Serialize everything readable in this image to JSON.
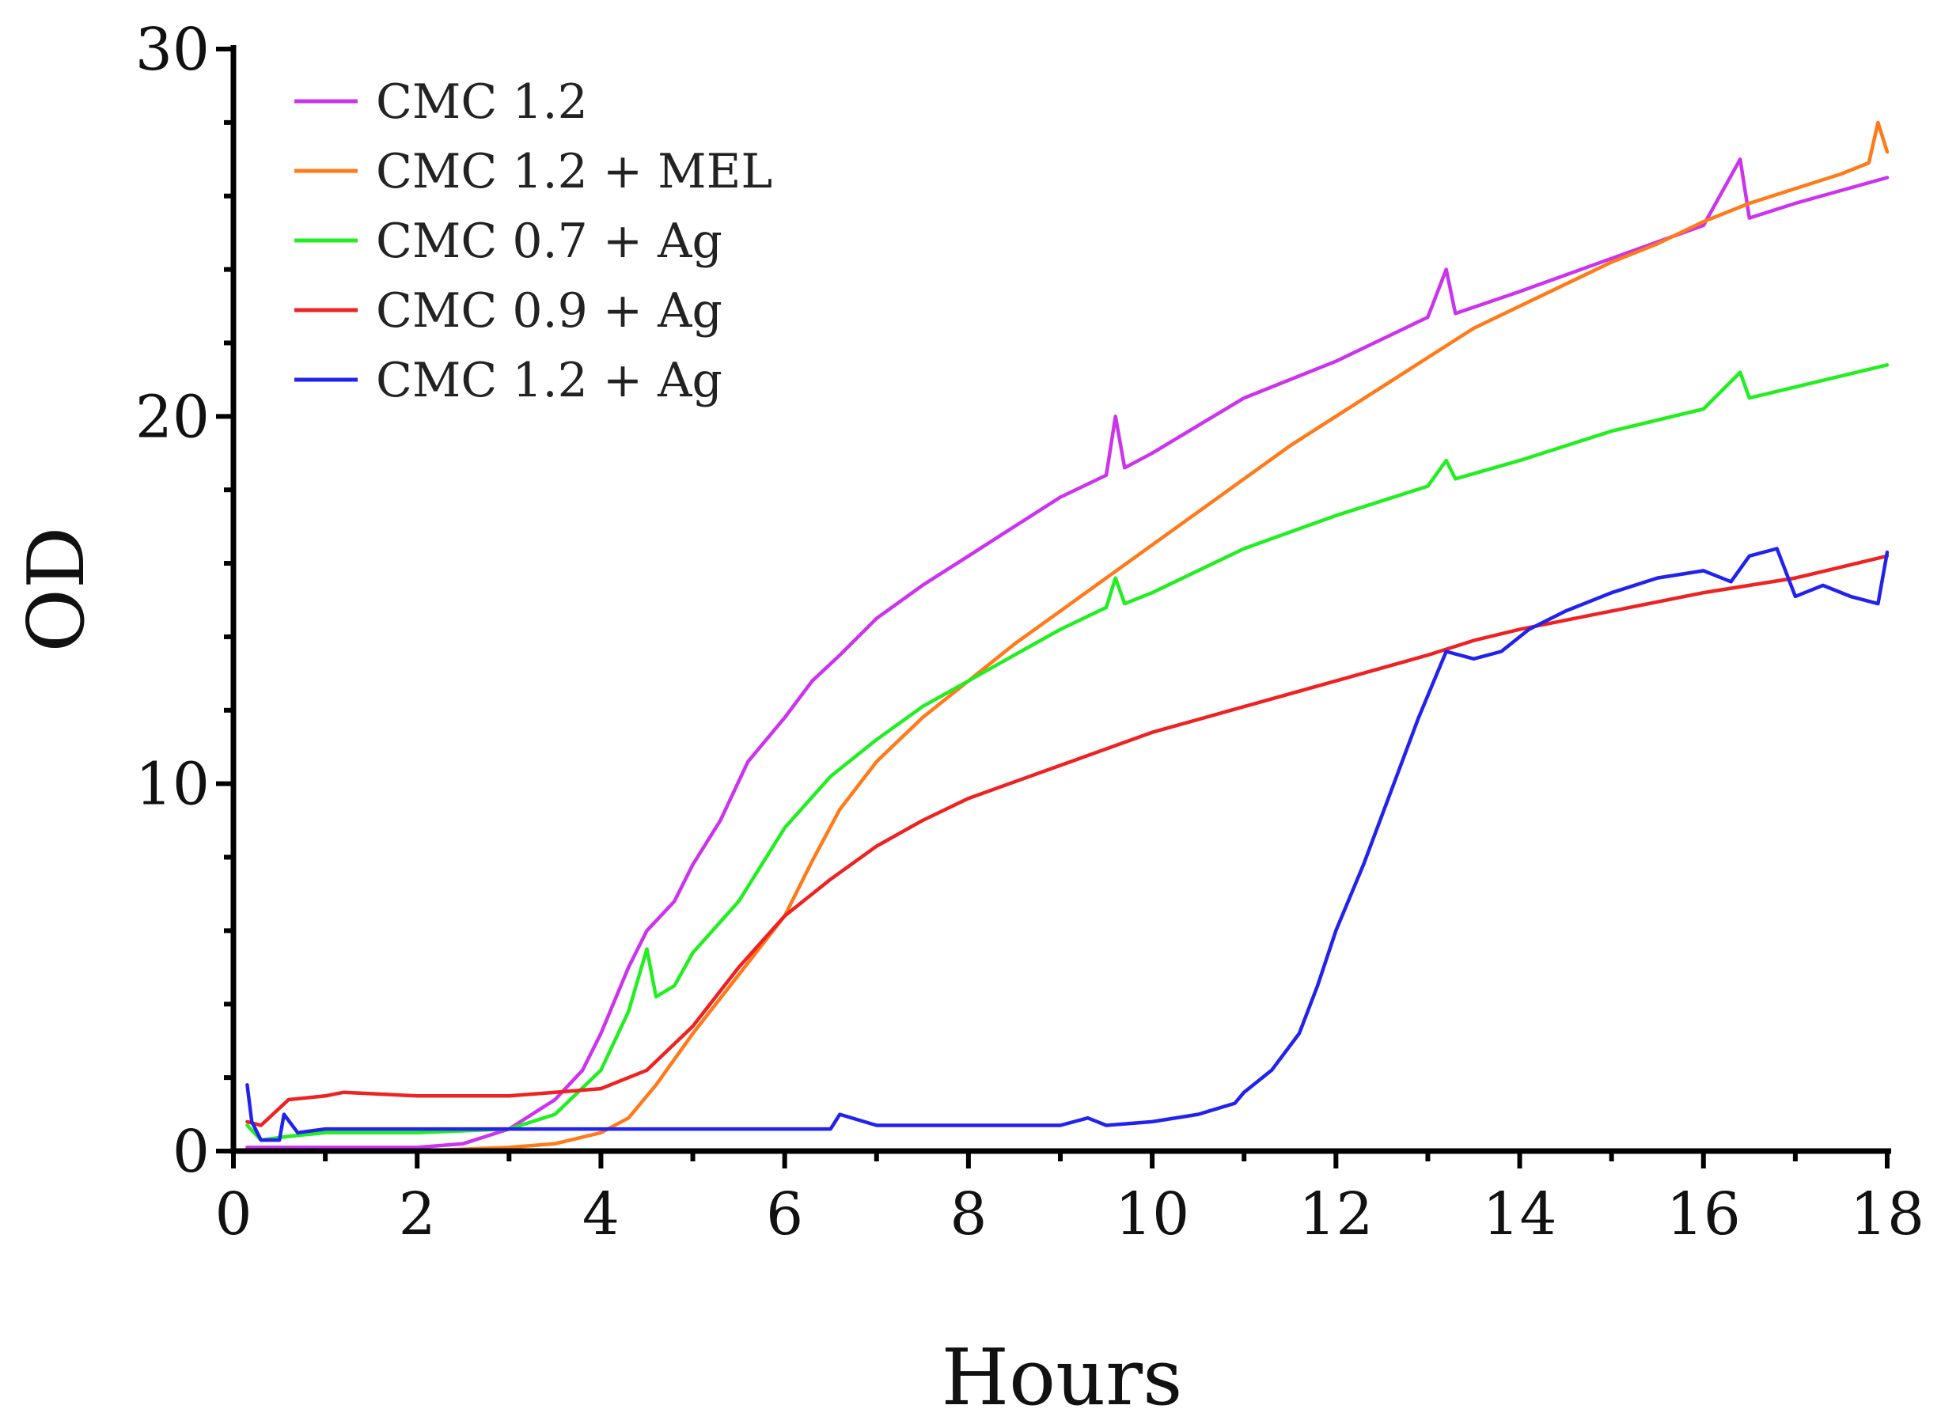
{
  "chart_data": {
    "type": "line",
    "title": "",
    "xlabel": "Hours",
    "ylabel": "OD",
    "xlim": [
      0,
      18
    ],
    "ylim": [
      0,
      30
    ],
    "xticks": [
      0,
      2,
      4,
      6,
      8,
      10,
      12,
      14,
      16,
      18
    ],
    "yticks": [
      0,
      10,
      20,
      30
    ],
    "legend_position": "top-left",
    "grid": false,
    "series": [
      {
        "name": "CMC 1.2",
        "color": "#cc33ee",
        "x": [
          0.15,
          1,
          2,
          2.5,
          3,
          3.5,
          3.8,
          4,
          4.3,
          4.5,
          4.8,
          5,
          5.3,
          5.6,
          6,
          6.3,
          6.6,
          7,
          7.5,
          8,
          8.5,
          9,
          9.5,
          9.6,
          9.7,
          10,
          11,
          12,
          13,
          13.2,
          13.3,
          14,
          15,
          16,
          16.4,
          16.5,
          17,
          18
        ],
        "y": [
          0.1,
          0.1,
          0.1,
          0.2,
          0.6,
          1.4,
          2.2,
          3.2,
          5.0,
          6.0,
          6.8,
          7.8,
          9.0,
          10.6,
          11.8,
          12.8,
          13.5,
          14.5,
          15.4,
          16.2,
          17.0,
          17.8,
          18.4,
          20.0,
          18.6,
          19.0,
          20.5,
          21.5,
          22.7,
          24.0,
          22.8,
          23.4,
          24.3,
          25.2,
          27.0,
          25.4,
          25.8,
          26.5
        ]
      },
      {
        "name": "CMC 1.2 + MEL",
        "color": "#ff7a1a",
        "x": [
          0.15,
          1,
          2,
          3,
          3.5,
          4,
          4.3,
          4.6,
          5,
          5.5,
          6,
          6.3,
          6.6,
          7,
          7.5,
          8,
          8.5,
          9,
          9.5,
          10,
          10.5,
          11,
          11.5,
          12,
          12.5,
          13,
          13.5,
          14,
          14.5,
          15,
          15.5,
          16,
          16.5,
          17,
          17.5,
          17.8,
          17.9,
          18
        ],
        "y": [
          0.0,
          0.0,
          0.0,
          0.1,
          0.2,
          0.5,
          0.9,
          1.8,
          3.2,
          4.8,
          6.4,
          7.9,
          9.3,
          10.6,
          11.8,
          12.8,
          13.8,
          14.7,
          15.6,
          16.5,
          17.4,
          18.3,
          19.2,
          20.0,
          20.8,
          21.6,
          22.4,
          23.0,
          23.6,
          24.2,
          24.7,
          25.3,
          25.8,
          26.2,
          26.6,
          26.9,
          28.0,
          27.2
        ]
      },
      {
        "name": "CMC 0.7 + Ag",
        "color": "#22ee22",
        "x": [
          0.15,
          0.3,
          0.6,
          1,
          2,
          3,
          3.5,
          4,
          4.3,
          4.5,
          4.6,
          4.8,
          5,
          5.5,
          6,
          6.5,
          7,
          7.5,
          8,
          8.5,
          9,
          9.5,
          9.6,
          9.7,
          10,
          11,
          12,
          13,
          13.2,
          13.3,
          14,
          15,
          16,
          16.4,
          16.5,
          17,
          18
        ],
        "y": [
          0.7,
          0.3,
          0.4,
          0.5,
          0.5,
          0.6,
          1.0,
          2.2,
          3.8,
          5.5,
          4.2,
          4.5,
          5.4,
          6.8,
          8.8,
          10.2,
          11.2,
          12.1,
          12.8,
          13.5,
          14.2,
          14.8,
          15.6,
          14.9,
          15.2,
          16.4,
          17.3,
          18.1,
          18.8,
          18.3,
          18.8,
          19.6,
          20.2,
          21.2,
          20.5,
          20.8,
          21.4
        ]
      },
      {
        "name": "CMC 0.9 + Ag",
        "color": "#ee2222",
        "x": [
          0.15,
          0.3,
          0.6,
          1,
          1.2,
          2,
          3,
          3.5,
          4,
          4.5,
          5,
          5.5,
          6,
          6.5,
          7,
          7.5,
          8,
          9,
          10,
          11,
          12,
          13,
          13.5,
          14,
          15,
          16,
          17,
          18
        ],
        "y": [
          0.8,
          0.7,
          1.4,
          1.5,
          1.6,
          1.5,
          1.5,
          1.6,
          1.7,
          2.2,
          3.4,
          5.0,
          6.4,
          7.4,
          8.3,
          9.0,
          9.6,
          10.5,
          11.4,
          12.1,
          12.8,
          13.5,
          13.9,
          14.2,
          14.7,
          15.2,
          15.6,
          16.2
        ]
      },
      {
        "name": "CMC 1.2 + Ag",
        "color": "#2222ee",
        "x": [
          0.15,
          0.2,
          0.3,
          0.5,
          0.55,
          0.7,
          1,
          2,
          3,
          4,
          5,
          6,
          6.5,
          6.6,
          7,
          8,
          9,
          9.3,
          9.5,
          10,
          10.5,
          10.9,
          11,
          11.3,
          11.6,
          11.8,
          12,
          12.3,
          12.6,
          12.9,
          13.2,
          13.5,
          13.8,
          14.1,
          14.5,
          15,
          15.5,
          16,
          16.3,
          16.5,
          16.8,
          17,
          17.3,
          17.6,
          17.9,
          18
        ],
        "y": [
          1.8,
          0.8,
          0.3,
          0.3,
          1.0,
          0.5,
          0.6,
          0.6,
          0.6,
          0.6,
          0.6,
          0.6,
          0.6,
          1.0,
          0.7,
          0.7,
          0.7,
          0.9,
          0.7,
          0.8,
          1.0,
          1.3,
          1.6,
          2.2,
          3.2,
          4.5,
          6.0,
          7.8,
          9.8,
          11.8,
          13.6,
          13.4,
          13.6,
          14.2,
          14.7,
          15.2,
          15.6,
          15.8,
          15.5,
          16.2,
          16.4,
          15.1,
          15.4,
          15.1,
          14.9,
          16.3
        ]
      }
    ]
  }
}
